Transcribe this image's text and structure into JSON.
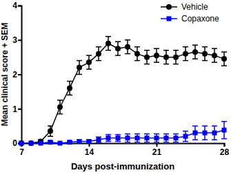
{
  "chart_data": {
    "type": "line",
    "x_label": "Days post-immunization",
    "y_label": "Mean clinical score + SEM",
    "x": [
      7,
      8,
      9,
      10,
      11,
      12,
      13,
      14,
      15,
      16,
      17,
      18,
      19,
      20,
      21,
      22,
      23,
      24,
      25,
      26,
      27,
      28
    ],
    "series": [
      {
        "name": "Vehicle",
        "color": "#000000",
        "marker": "circle",
        "values": [
          0,
          0,
          0.05,
          0.35,
          1.05,
          1.6,
          2.2,
          2.35,
          2.6,
          2.9,
          2.75,
          2.8,
          2.6,
          2.5,
          2.55,
          2.5,
          2.5,
          2.6,
          2.65,
          2.6,
          2.55,
          2.45
        ],
        "errors": [
          0,
          0,
          0.05,
          0.15,
          0.2,
          0.2,
          0.2,
          0.2,
          0.2,
          0.2,
          0.2,
          0.2,
          0.2,
          0.2,
          0.2,
          0.2,
          0.2,
          0.2,
          0.2,
          0.2,
          0.2,
          0.2
        ]
      },
      {
        "name": "Copaxone",
        "color": "#0000ff",
        "marker": "square",
        "values": [
          0,
          0,
          0,
          0.03,
          0,
          0.03,
          0.05,
          0.05,
          0.1,
          0.15,
          0.15,
          0.15,
          0.15,
          0.15,
          0.15,
          0.15,
          0.15,
          0.2,
          0.3,
          0.3,
          0.3,
          0.38
        ],
        "errors": [
          0,
          0,
          0,
          0.03,
          0,
          0.03,
          0.05,
          0.05,
          0.08,
          0.1,
          0.1,
          0.12,
          0.12,
          0.12,
          0.12,
          0.12,
          0.12,
          0.15,
          0.2,
          0.2,
          0.2,
          0.25
        ]
      }
    ],
    "xlim": [
      7,
      28
    ],
    "xticks": [
      7,
      14,
      21,
      28
    ],
    "ylim": [
      0,
      4
    ],
    "yticks": [
      0,
      1,
      2,
      3,
      4
    ],
    "legend": "top-right"
  }
}
